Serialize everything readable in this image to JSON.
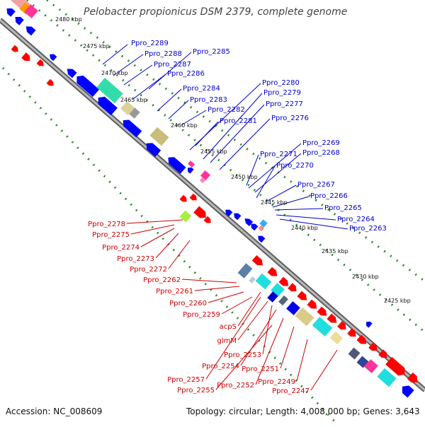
{
  "title": "Pelobacter propionicus DSM 2379, complete genome",
  "footer": {
    "accession": "Accession: NC_008609",
    "summary": "Topology: circular; Length: 4,008,000 bp; Genes: 3,643"
  },
  "colors": {
    "forward_gene": "#0000ff",
    "reverse_gene": "#ff0000",
    "backbone": "#808080",
    "tick_dots": "#2a8a2a",
    "forward_label": "#0000cc",
    "reverse_label": "#cc0000"
  },
  "ruler_labels": [
    "2480 kbp",
    "2475 kbp",
    "2470 kbp",
    "2465 kbp",
    "2460 kbp",
    "2455 kbp",
    "2450 kbp",
    "2445 kbp",
    "2440 kbp",
    "2435 kbp",
    "2430 kbp",
    "2425 kbp"
  ],
  "forward_labels": [
    "Ppro_2289",
    "Ppro_2288",
    "Ppro_2287",
    "Ppro_2285",
    "Ppro_2286",
    "Ppro_2284",
    "Ppro_2283",
    "Ppro_2282",
    "Ppro_2281",
    "Ppro_2280",
    "Ppro_2279",
    "Ppro_2277",
    "Ppro_2276",
    "Ppro_2271",
    "Ppro_2269",
    "Ppro_2268",
    "Ppro_2270",
    "Ppro_2267",
    "Ppro_2266",
    "Ppro_2265",
    "Ppro_2264",
    "Ppro_2263"
  ],
  "reverse_labels": [
    "Ppro_2278",
    "Ppro_2275",
    "Ppro_2274",
    "Ppro_2273",
    "Ppro_2272",
    "Ppro_2262",
    "Ppro_2261",
    "Ppro_2260",
    "Ppro_2259",
    "acpS",
    "glmM",
    "Ppro_2253",
    "Ppro_2254",
    "Ppro_2251",
    "Ppro_2257",
    "Ppro_2252",
    "Ppro_2249",
    "Ppro_2255",
    "Ppro_2247"
  ]
}
